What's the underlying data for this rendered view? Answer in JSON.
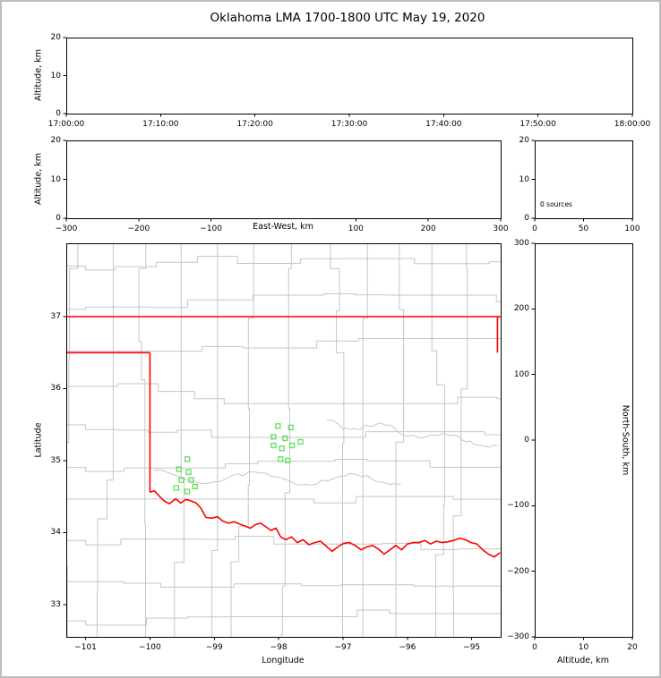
{
  "title": "Oklahoma LMA 1700-1800 UTC May 19, 2020",
  "colors": {
    "state_border": "#ff0000",
    "county_lines": "#c6c6c6",
    "stations": "#5fe05f",
    "spine": "#000000",
    "figure_border": "#bdbdbd",
    "background": "#ffffff"
  },
  "chart_data": [
    {
      "id": "time_height_panel",
      "type": "scatter",
      "ylabel": "Altitude, km",
      "ylim": [
        0,
        20
      ],
      "yticks": [
        0,
        10,
        20
      ],
      "ytick_labels": [
        "0",
        "10",
        "20"
      ],
      "xtick_labels": [
        "17:00:00",
        "17:10:00",
        "17:20:00",
        "17:30:00",
        "17:40:00",
        "17:50:00",
        "18:00:00"
      ],
      "points": []
    },
    {
      "id": "ew_height_panel",
      "type": "scatter",
      "xlabel": "East-West, km",
      "ylabel": "Altitude, km",
      "xlim": [
        -300,
        300
      ],
      "xticks": [
        -300,
        -200,
        -100,
        100,
        200,
        300
      ],
      "xtick_labels": [
        "−300",
        "−200",
        "−100",
        "100",
        "200",
        "300"
      ],
      "ylim": [
        0,
        20
      ],
      "yticks": [
        0,
        10,
        20
      ],
      "ytick_labels": [
        "0",
        "10",
        "20"
      ],
      "points": []
    },
    {
      "id": "alt_histogram",
      "type": "line",
      "annotation": "0 sources",
      "xlim": [
        0,
        100
      ],
      "xticks": [
        0,
        50,
        100
      ],
      "xtick_labels": [
        "0",
        "50",
        "100"
      ],
      "ylim": [
        0,
        20
      ],
      "yticks": [
        0,
        10,
        20
      ],
      "ytick_labels": [
        "0",
        "10",
        "20"
      ],
      "points": []
    },
    {
      "id": "plan_map",
      "type": "scatter",
      "xlabel": "Longitude",
      "ylabel": "Latitude",
      "xlim": [
        -101.3,
        -94.55
      ],
      "xticks": [
        -101,
        -100,
        -99,
        -98,
        -97,
        -96,
        -95
      ],
      "xtick_labels": [
        "−101",
        "−100",
        "−99",
        "−98",
        "−97",
        "−96",
        "−95"
      ],
      "ylim": [
        32.55,
        38.02
      ],
      "yticks": [
        33,
        34,
        35,
        36,
        37
      ],
      "ytick_labels": [
        "33",
        "34",
        "35",
        "36",
        "37"
      ],
      "stations": [
        [
          -99.42,
          35.02
        ],
        [
          -99.55,
          34.88
        ],
        [
          -99.4,
          34.84
        ],
        [
          -99.51,
          34.73
        ],
        [
          -99.36,
          34.73
        ],
        [
          -99.59,
          34.62
        ],
        [
          -99.42,
          34.57
        ],
        [
          -99.3,
          34.64
        ],
        [
          -98.01,
          35.48
        ],
        [
          -97.81,
          35.46
        ],
        [
          -98.08,
          35.33
        ],
        [
          -97.9,
          35.31
        ],
        [
          -98.08,
          35.21
        ],
        [
          -97.95,
          35.17
        ],
        [
          -97.79,
          35.21
        ],
        [
          -97.66,
          35.26
        ],
        [
          -97.97,
          35.02
        ],
        [
          -97.86,
          35.0
        ]
      ],
      "state_border_segments": {
        "north": [
          [
            -101.3,
            37.0
          ],
          [
            -94.55,
            37.0
          ]
        ],
        "east": [
          [
            -94.6,
            37.0
          ],
          [
            -94.6,
            36.5
          ]
        ],
        "panhandle_south": [
          [
            -101.3,
            36.5
          ],
          [
            -100.0,
            36.5
          ]
        ],
        "west_main": [
          [
            -100.0,
            36.5
          ],
          [
            -100.0,
            34.56
          ]
        ],
        "red_river": [
          [
            -100.0,
            34.56
          ],
          [
            -99.93,
            34.58
          ],
          [
            -99.85,
            34.5
          ],
          [
            -99.78,
            34.44
          ],
          [
            -99.7,
            34.4
          ],
          [
            -99.6,
            34.47
          ],
          [
            -99.52,
            34.41
          ],
          [
            -99.44,
            34.46
          ],
          [
            -99.36,
            34.44
          ],
          [
            -99.28,
            34.41
          ],
          [
            -99.21,
            34.34
          ],
          [
            -99.13,
            34.21
          ],
          [
            -99.04,
            34.2
          ],
          [
            -98.95,
            34.22
          ],
          [
            -98.87,
            34.16
          ],
          [
            -98.78,
            34.13
          ],
          [
            -98.69,
            34.15
          ],
          [
            -98.61,
            34.12
          ],
          [
            -98.52,
            34.09
          ],
          [
            -98.44,
            34.06
          ],
          [
            -98.36,
            34.11
          ],
          [
            -98.28,
            34.13
          ],
          [
            -98.2,
            34.08
          ],
          [
            -98.12,
            34.03
          ],
          [
            -98.04,
            34.06
          ],
          [
            -97.97,
            33.94
          ],
          [
            -97.89,
            33.9
          ],
          [
            -97.8,
            33.94
          ],
          [
            -97.71,
            33.86
          ],
          [
            -97.62,
            33.9
          ],
          [
            -97.53,
            33.83
          ],
          [
            -97.44,
            33.86
          ],
          [
            -97.35,
            33.88
          ],
          [
            -97.26,
            33.81
          ],
          [
            -97.17,
            33.74
          ],
          [
            -97.08,
            33.8
          ],
          [
            -96.99,
            33.85
          ],
          [
            -96.9,
            33.86
          ],
          [
            -96.81,
            33.82
          ],
          [
            -96.72,
            33.76
          ],
          [
            -96.63,
            33.8
          ],
          [
            -96.54,
            33.82
          ],
          [
            -96.45,
            33.77
          ],
          [
            -96.36,
            33.7
          ],
          [
            -96.27,
            33.76
          ],
          [
            -96.18,
            33.82
          ],
          [
            -96.09,
            33.76
          ],
          [
            -96.0,
            33.84
          ],
          [
            -95.91,
            33.86
          ],
          [
            -95.82,
            33.86
          ],
          [
            -95.73,
            33.89
          ],
          [
            -95.64,
            33.84
          ],
          [
            -95.55,
            33.88
          ],
          [
            -95.46,
            33.86
          ],
          [
            -95.37,
            33.87
          ],
          [
            -95.28,
            33.89
          ],
          [
            -95.19,
            33.92
          ],
          [
            -95.1,
            33.9
          ],
          [
            -95.01,
            33.86
          ],
          [
            -94.92,
            33.84
          ],
          [
            -94.83,
            33.76
          ],
          [
            -94.74,
            33.7
          ],
          [
            -94.65,
            33.66
          ],
          [
            -94.56,
            33.72
          ]
        ]
      }
    },
    {
      "id": "ns_height_panel",
      "type": "scatter",
      "xlabel": "Altitude, km",
      "ylabel": "North-South, km",
      "xlim": [
        0,
        20
      ],
      "xticks": [
        0,
        10,
        20
      ],
      "xtick_labels": [
        "0",
        "10",
        "20"
      ],
      "ylim": [
        -300,
        300
      ],
      "yticks": [
        300,
        200,
        100,
        0,
        -100,
        -200,
        -300
      ],
      "ytick_labels": [
        "300",
        "200",
        "100",
        "0",
        "−100",
        "−200",
        "−300"
      ],
      "points": []
    }
  ]
}
